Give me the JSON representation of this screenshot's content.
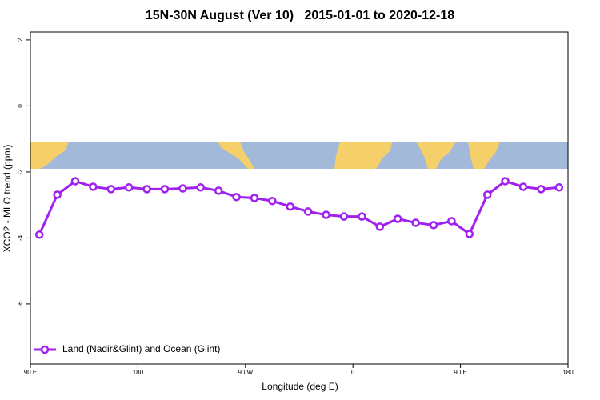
{
  "chart_data": {
    "type": "line",
    "title": "15N-30N August (Ver 10)   2015-01-01 to 2020-12-18",
    "x_label": "Longitude (deg E)",
    "y_label": "XCO2 - MLO trend (ppm)",
    "xlim": [
      90,
      540
    ],
    "ylim": [
      -7.82,
      2.24
    ],
    "xticks": [
      {
        "value": 90,
        "label": "90 E"
      },
      180,
      {
        "value": 270,
        "label": "90 W"
      },
      {
        "value": 360,
        "label": "0"
      },
      {
        "value": 450,
        "label": "90 E"
      },
      {
        "value": 540,
        "label": "180"
      }
    ],
    "yticks": [
      2,
      0,
      -2,
      -4,
      -6
    ],
    "legend": "bottom-left",
    "series": [
      {
        "name": "Land (Nadir&Glint) and Ocean (Glint)",
        "color": "#a020f0",
        "x": [
          97.5,
          112.5,
          127.5,
          142.5,
          157.5,
          172.5,
          187.5,
          202.5,
          217.5,
          232.5,
          247.5,
          262.5,
          277.5,
          292.5,
          307.5,
          322.5,
          337.5,
          352.5,
          367.5,
          382.5,
          397.5,
          412.5,
          427.5,
          442.5,
          457.5,
          472.5,
          487.5,
          502.5,
          517.5,
          532.5
        ],
        "values": [
          -3.9,
          -2.69,
          -2.28,
          -2.45,
          -2.52,
          -2.47,
          -2.52,
          -2.52,
          -2.5,
          -2.47,
          -2.57,
          -2.76,
          -2.79,
          -2.88,
          -3.05,
          -3.2,
          -3.3,
          -3.35,
          -3.35,
          -3.66,
          -3.42,
          -3.54,
          -3.61,
          -3.49,
          -3.88,
          -2.69,
          -2.28,
          -2.45,
          -2.52,
          -2.47
        ]
      }
    ]
  }
}
